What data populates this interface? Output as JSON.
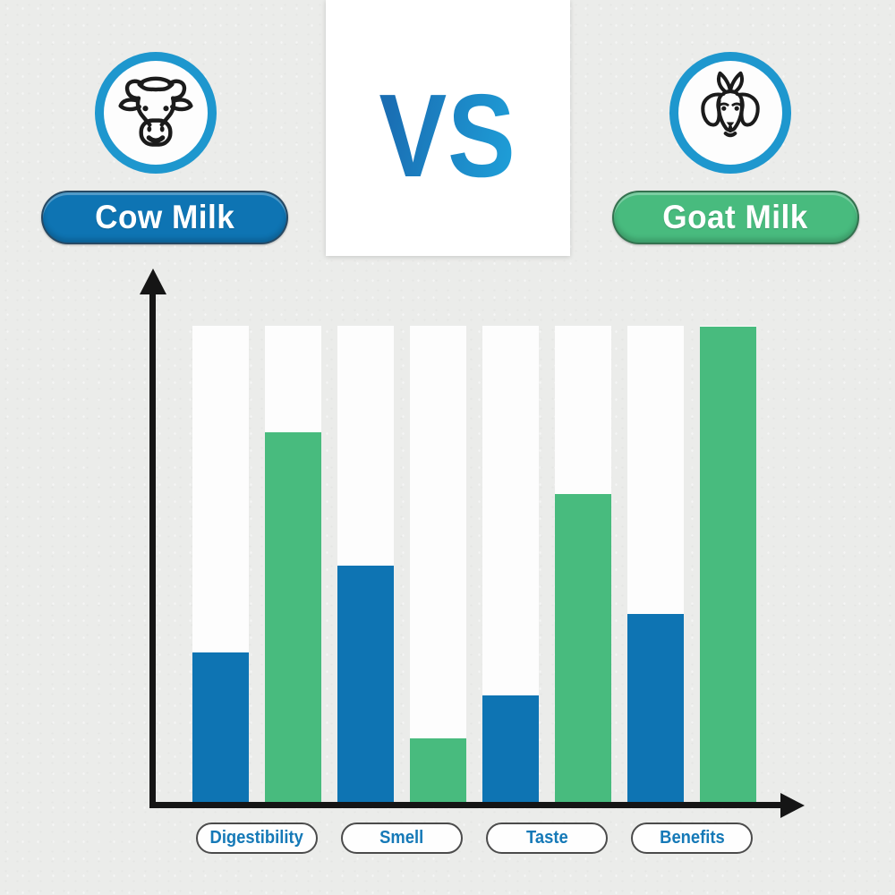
{
  "header": {
    "vs_label": "VS",
    "cow_label": "Cow Milk",
    "goat_label": "Goat Milk"
  },
  "colors": {
    "background": "#ebecea",
    "cow_blue": "#0e74b3",
    "goat_green": "#48bb7e",
    "ring_blue": "#1e97ce",
    "axis_black": "#151515",
    "track_white": "#fdfdfd",
    "category_text_blue": "#1579b7",
    "vs_gradient_start": "#1a6eb3",
    "vs_gradient_end": "#1e9cd6"
  },
  "chart_data": {
    "type": "bar",
    "categories": [
      "Digestibility",
      "Smell",
      "Taste",
      "Benefits"
    ],
    "series": [
      {
        "name": "Cow Milk",
        "color": "#0e74b3",
        "values": [
          32,
          50,
          23,
          40
        ]
      },
      {
        "name": "Goat Milk",
        "color": "#48bb7e",
        "values": [
          78,
          14,
          65,
          100
        ]
      }
    ],
    "ylim": [
      0,
      100
    ],
    "unit": "percent-of-axis-height",
    "grid": false,
    "legend_position": "header-pills",
    "x_tick_style": "rounded-outline-pills",
    "axes": {
      "y_arrow": true,
      "x_arrow": true,
      "numeric_ticks": false
    }
  }
}
